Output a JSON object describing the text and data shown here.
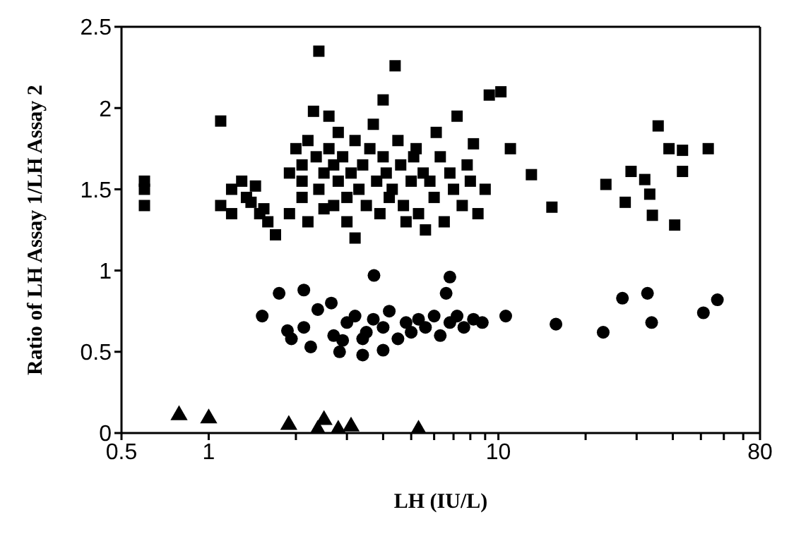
{
  "chart_data": {
    "type": "scatter",
    "xlabel": "LH (IU/L)",
    "ylabel": "Ratio of LH Assay 1/LH Assay 2",
    "log": "x",
    "xlim": [
      0.5,
      80
    ],
    "ylim": [
      0,
      2.5
    ],
    "xticks": [
      0.5,
      1,
      {
        "value": 2,
        "label": null
      },
      {
        "value": 3,
        "label": null
      },
      {
        "value": 4,
        "label": null
      },
      {
        "value": 5,
        "label": null
      },
      {
        "value": 6,
        "label": null
      },
      {
        "value": 7,
        "label": null
      },
      {
        "value": 8,
        "label": null
      },
      {
        "value": 9,
        "label": null
      },
      10,
      {
        "value": 20,
        "label": null
      },
      {
        "value": 30,
        "label": null
      },
      {
        "value": 40,
        "label": null
      },
      {
        "value": 50,
        "label": null
      },
      {
        "value": 60,
        "label": null
      },
      {
        "value": 70,
        "label": null
      },
      80
    ],
    "yticks": [
      0,
      0.5,
      1,
      1.5,
      2,
      2.5
    ],
    "series": [
      {
        "color": "#000000",
        "marker": "square",
        "x": [
          0.6,
          0.6,
          0.6,
          1.1,
          1.1,
          1.2,
          1.2,
          1.3,
          1.35,
          1.4,
          1.45,
          1.5,
          1.55,
          1.6,
          1.7,
          1.9,
          1.9,
          2.0,
          2.1,
          2.1,
          2.1,
          2.2,
          2.2,
          2.3,
          2.35,
          2.4,
          2.4,
          2.5,
          2.5,
          2.6,
          2.6,
          2.7,
          2.7,
          2.8,
          2.8,
          2.9,
          3.0,
          3.0,
          3.1,
          3.2,
          3.2,
          3.3,
          3.4,
          3.5,
          3.6,
          3.7,
          3.8,
          3.9,
          4.0,
          4.0,
          4.1,
          4.2,
          4.3,
          4.4,
          4.5,
          4.6,
          4.7,
          4.8,
          5.0,
          5.1,
          5.2,
          5.3,
          5.5,
          5.6,
          5.8,
          6.0,
          6.1,
          6.3,
          6.5,
          6.8,
          7.0,
          7.2,
          7.5,
          7.8,
          8.0,
          8.2,
          8.5,
          9.0,
          9.3,
          10.2,
          11.0,
          13,
          15.3,
          23.5,
          27.4,
          28.7,
          32,
          33.3,
          34,
          35.6,
          38.8,
          43.2,
          43.2,
          40.6,
          53
        ],
        "values": [
          1.55,
          1.5,
          1.4,
          1.92,
          1.4,
          1.5,
          1.35,
          1.55,
          1.45,
          1.42,
          1.52,
          1.35,
          1.38,
          1.3,
          1.22,
          1.6,
          1.35,
          1.75,
          1.65,
          1.55,
          1.45,
          1.8,
          1.3,
          1.98,
          1.7,
          2.35,
          1.5,
          1.38,
          1.6,
          1.95,
          1.75,
          1.65,
          1.4,
          1.55,
          1.85,
          1.7,
          1.45,
          1.3,
          1.6,
          1.8,
          1.2,
          1.5,
          1.65,
          1.4,
          1.75,
          1.9,
          1.55,
          1.35,
          2.05,
          1.7,
          1.6,
          1.45,
          1.5,
          2.26,
          1.8,
          1.65,
          1.4,
          1.3,
          1.55,
          1.7,
          1.75,
          1.35,
          1.6,
          1.25,
          1.55,
          1.45,
          1.85,
          1.7,
          1.3,
          1.6,
          1.5,
          1.95,
          1.4,
          1.65,
          1.55,
          1.78,
          1.35,
          1.5,
          2.08,
          2.1,
          1.75,
          1.59,
          1.39,
          1.53,
          1.42,
          1.61,
          1.56,
          1.47,
          1.34,
          1.89,
          1.75,
          1.74,
          1.61,
          1.28,
          1.75
        ]
      },
      {
        "color": "#000000",
        "marker": "circle",
        "x": [
          1.53,
          1.75,
          2.13,
          1.87,
          1.93,
          2.13,
          2.25,
          2.38,
          2.65,
          2.83,
          2.9,
          3.0,
          3.72,
          6.8,
          6.6,
          3.4,
          4.0,
          10.6,
          15.8,
          26.8,
          32.7,
          33.8,
          23,
          51,
          57,
          3.2,
          3.5,
          3.7,
          4.0,
          4.2,
          4.5,
          4.8,
          5.0,
          5.3,
          5.6,
          6.0,
          6.3,
          6.8,
          7.2,
          7.6,
          8.2,
          8.8,
          3.4,
          2.7
        ],
        "values": [
          0.72,
          0.86,
          0.88,
          0.63,
          0.58,
          0.65,
          0.53,
          0.76,
          0.8,
          0.5,
          0.57,
          0.68,
          0.97,
          0.96,
          0.86,
          0.48,
          0.51,
          0.72,
          0.67,
          0.83,
          0.86,
          0.68,
          0.62,
          0.74,
          0.82,
          0.72,
          0.62,
          0.7,
          0.65,
          0.75,
          0.58,
          0.68,
          0.62,
          0.7,
          0.65,
          0.72,
          0.6,
          0.68,
          0.72,
          0.65,
          0.7,
          0.68,
          0.58,
          0.6
        ]
      },
      {
        "color": "#000000",
        "marker": "triangle",
        "x": [
          0.79,
          1.0,
          1.89,
          2.38,
          2.5,
          2.8,
          3.1,
          5.3
        ],
        "values": [
          0.11,
          0.09,
          0.05,
          0.02,
          0.08,
          0.02,
          0.04,
          0.02
        ]
      }
    ]
  }
}
